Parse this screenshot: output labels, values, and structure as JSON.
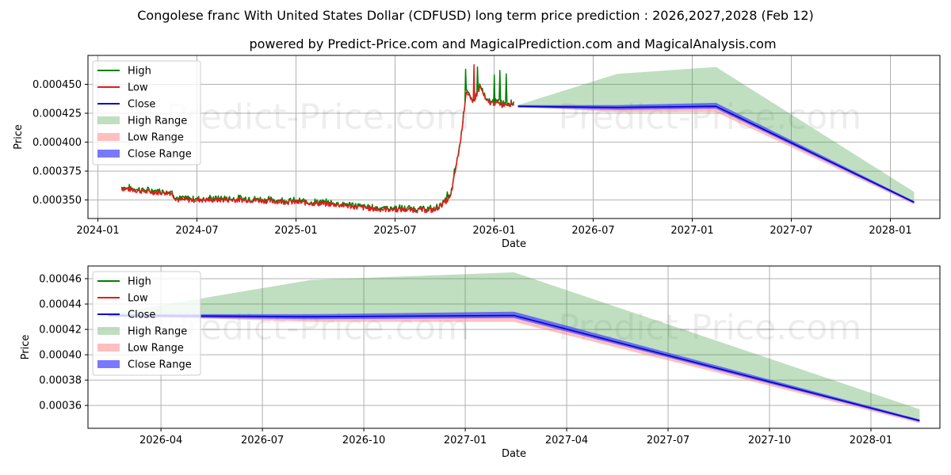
{
  "chart_data": {
    "type": "line",
    "title": "Congolese franc With United States Dollar (CDFUSD) long term price prediction : 2026,2027,2028 (Feb 12)",
    "subtitle": "powered by Predict-Price.com and MagicalPrediction.com and MagicalAnalysis.com",
    "watermark": "Predict-Price.com",
    "colors": {
      "high": "#008000",
      "low": "#e41a1c",
      "close": "#0000cd",
      "high_range": "#3f9f3f",
      "low_range": "#ff8080",
      "close_range": "#4040ff"
    },
    "legend": {
      "location": "upper-left",
      "entries": [
        {
          "key": "high",
          "label": "High"
        },
        {
          "key": "low",
          "label": "Low"
        },
        {
          "key": "close",
          "label": "Close"
        },
        {
          "key": "high_range",
          "label": "High Range"
        },
        {
          "key": "low_range",
          "label": "Low Range"
        },
        {
          "key": "close_range",
          "label": "Close Range"
        }
      ]
    },
    "history": {
      "anchors_date": [
        2024.12,
        2024.25,
        2024.37,
        2024.4,
        2024.55,
        2024.75,
        2025.0,
        2025.2,
        2025.4,
        2025.7,
        2025.78,
        2025.83,
        2025.86,
        2025.89,
        2025.93,
        2025.96,
        2025.98,
        2026.05,
        2026.1
      ],
      "anchors_value": [
        0.00036,
        0.000357,
        0.000356,
        0.00035,
        0.00035,
        0.00035,
        0.000348,
        0.000346,
        0.000342,
        0.000341,
        0.000352,
        0.0004,
        0.000445,
        0.000433,
        0.000448,
        0.000435,
        0.000434,
        0.000433,
        0.000433
      ],
      "spikes_high": [
        {
          "x": 2025.765,
          "y": 0.000357
        },
        {
          "x": 2025.8,
          "y": 0.000377
        },
        {
          "x": 2025.855,
          "y": 0.000463
        },
        {
          "x": 2025.915,
          "y": 0.000465
        },
        {
          "x": 2026.0,
          "y": 0.000458
        },
        {
          "x": 2026.03,
          "y": 0.000462
        },
        {
          "x": 2026.06,
          "y": 0.000459
        }
      ],
      "spikes_low": [
        {
          "x": 2025.9,
          "y": 0.000467
        },
        {
          "x": 2026.04,
          "y": 0.00043
        }
      ]
    },
    "forecast": {
      "x": [
        2026.12,
        2026.62,
        2027.12,
        2028.12
      ],
      "close": [
        0.000431,
        0.00043,
        0.000431,
        0.000348
      ],
      "close_upper": [
        0.000432,
        0.000432,
        0.000434,
        0.000349
      ],
      "close_lower": [
        0.00043,
        0.000428,
        0.000429,
        0.000347
      ],
      "high_upper": [
        0.000432,
        0.000459,
        0.000465,
        0.000357
      ],
      "low_lower": [
        0.000431,
        0.000426,
        0.000426,
        0.000346
      ]
    },
    "axes_top": {
      "xlim": [
        2023.95,
        2028.25
      ],
      "ylim": [
        0.000334,
        0.000475
      ],
      "xticks": [
        2024.0,
        2024.5,
        2025.0,
        2025.5,
        2026.0,
        2026.5,
        2027.0,
        2027.5,
        2028.0
      ],
      "xtick_labels": [
        "2024-01",
        "2024-07",
        "2025-01",
        "2025-07",
        "2026-01",
        "2026-07",
        "2027-01",
        "2027-07",
        "2028-01"
      ],
      "yticks": [
        0.00035,
        0.000375,
        0.0004,
        0.000425,
        0.00045
      ],
      "ytick_labels": [
        "0.000350",
        "0.000375",
        "0.000400",
        "0.000425",
        "0.000450"
      ],
      "xlabel": "Date",
      "ylabel": "Price",
      "grid": true
    },
    "axes_bottom": {
      "xlim": [
        2026.07,
        2028.17
      ],
      "ylim": [
        0.000342,
        0.00047
      ],
      "xticks": [
        2026.25,
        2026.5,
        2026.75,
        2027.0,
        2027.25,
        2027.5,
        2027.75,
        2028.0
      ],
      "xtick_labels": [
        "2026-04",
        "2026-07",
        "2026-10",
        "2027-01",
        "2027-04",
        "2027-07",
        "2027-10",
        "2028-01"
      ],
      "yticks": [
        0.00036,
        0.00038,
        0.0004,
        0.00042,
        0.00044,
        0.00046
      ],
      "ytick_labels": [
        "0.00036",
        "0.00038",
        "0.00040",
        "0.00042",
        "0.00044",
        "0.00046"
      ],
      "xlabel": "Date",
      "ylabel": "Price",
      "grid": true
    }
  }
}
